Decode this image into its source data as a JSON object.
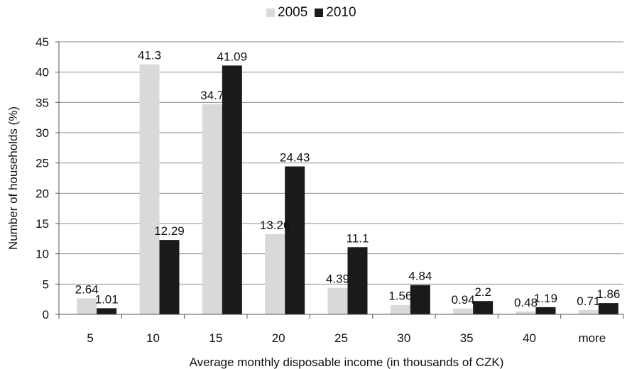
{
  "chart_data": {
    "type": "bar",
    "title": "",
    "xlabel": "Average monthly disposable income (in thousands of CZK)",
    "ylabel": "Number of households  (%)",
    "categories": [
      "5",
      "10",
      "15",
      "20",
      "25",
      "30",
      "35",
      "40",
      "more"
    ],
    "series": [
      {
        "name": "2005",
        "color": "#d9d9d9",
        "values": [
          2.64,
          41.3,
          34.7,
          13.26,
          4.39,
          1.56,
          0.94,
          0.48,
          0.71
        ],
        "labels": [
          "2.64",
          "41.3",
          "34.7",
          "13.26",
          "4.39",
          "1.56",
          "0.94",
          "0.48",
          "0.71"
        ]
      },
      {
        "name": "2010",
        "color": "#1a1a1a",
        "values": [
          1.01,
          12.29,
          41.09,
          24.43,
          11.1,
          4.84,
          2.2,
          1.19,
          1.86
        ],
        "labels": [
          "1.01",
          "12.29",
          "41.09",
          "24.43",
          "11.1",
          "4.84",
          "2.2",
          "1.19",
          "1.86"
        ]
      }
    ],
    "ylim": [
      0,
      45
    ],
    "yticks": [
      "0",
      "5",
      "10",
      "15",
      "20",
      "25",
      "30",
      "35",
      "40",
      "45"
    ],
    "grid": true,
    "legend_position": "top-center"
  }
}
